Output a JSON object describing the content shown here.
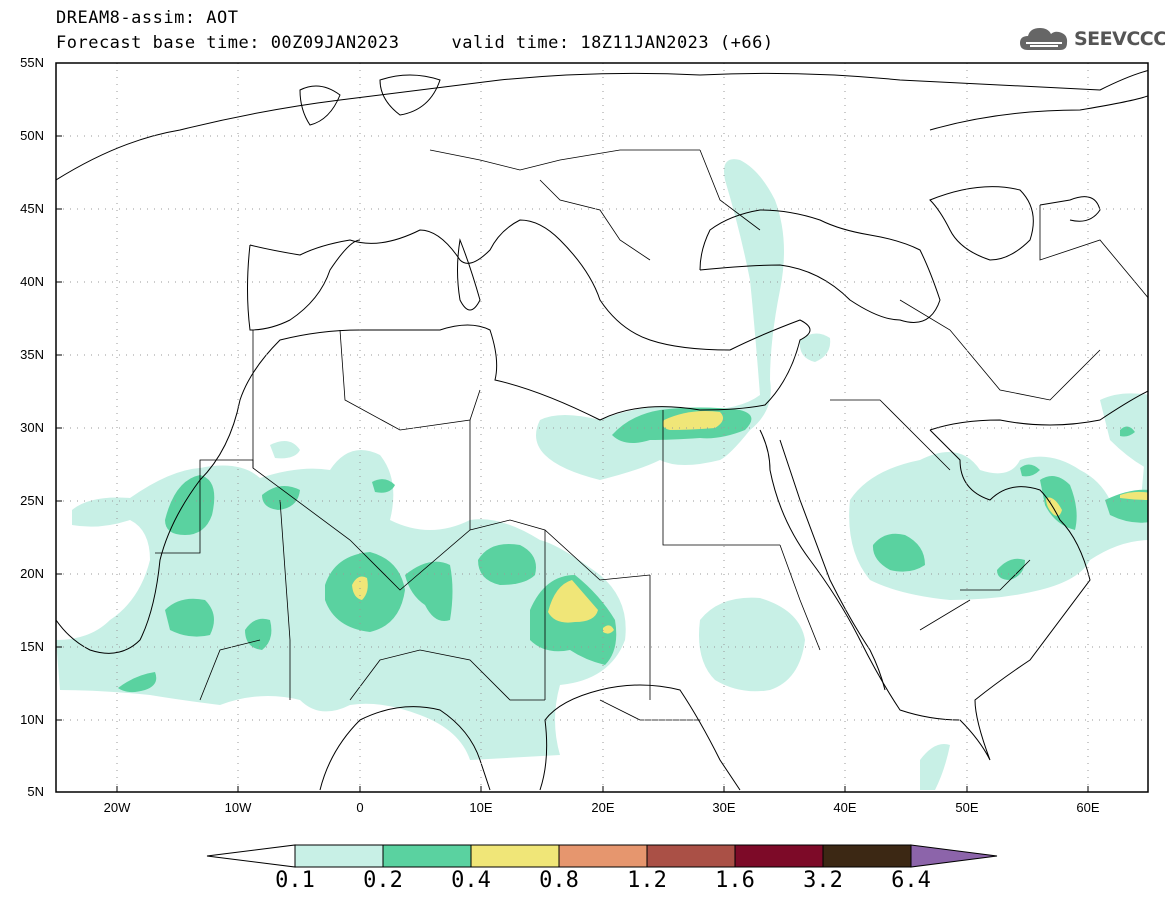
{
  "header": {
    "title": "DREAM8-assim: AOT",
    "base_time": "Forecast base time: 00Z09JAN2023",
    "valid_time": "valid time: 18Z11JAN2023 (+66)"
  },
  "logo": {
    "text": "SEEVCCC",
    "icon": "cloud-icon"
  },
  "map": {
    "variable": "AOT",
    "lat_labels": [
      "55N",
      "50N",
      "45N",
      "40N",
      "35N",
      "30N",
      "25N",
      "20N",
      "15N",
      "10N",
      "5N"
    ],
    "lon_labels": [
      "20W",
      "10W",
      "0",
      "10E",
      "20E",
      "30E",
      "40E",
      "50E",
      "60E"
    ]
  },
  "colorbar": {
    "labels": [
      "0.1",
      "0.2",
      "0.4",
      "0.8",
      "1.2",
      "1.6",
      "3.2",
      "6.4"
    ],
    "colors": [
      "#ffffff",
      "#c8f0e6",
      "#5ad2a0",
      "#f0e678",
      "#e6966e",
      "#aa5046",
      "#7d0a28",
      "#3c2814",
      "#8c64aa"
    ]
  }
}
